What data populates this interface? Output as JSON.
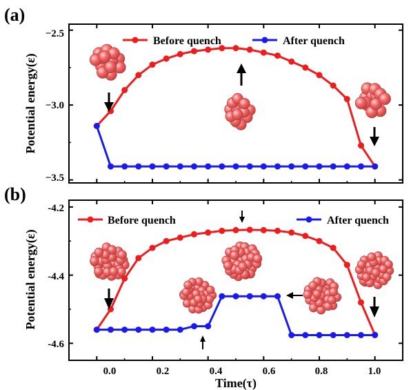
{
  "colors": {
    "before": "#ee1c1c",
    "after": "#1a1aee",
    "atom_fill": "#f06262",
    "atom_stroke": "#b63030",
    "arrow": "#000000"
  },
  "icons": [
    "cluster-icon",
    "down-arrow-icon",
    "up-arrow-icon",
    "left-arrow-icon"
  ],
  "chart_data": [
    {
      "type": "line",
      "panel_label": "(a)",
      "xlabel": "",
      "ylabel": "Potential energy(ε)",
      "xlim": [
        -0.1,
        1.1
      ],
      "ylim": [
        -3.52,
        -2.46
      ],
      "xticks": [
        0.0,
        0.2,
        0.4,
        0.6,
        0.8,
        1.0
      ],
      "xticklabels": [
        "",
        "",
        "",
        "",
        "",
        ""
      ],
      "yticks": [
        -3.5,
        -3.0,
        -2.5
      ],
      "yticklabels": [
        "−3.5",
        "−3.0",
        "−2.5"
      ],
      "legend_placement": "top",
      "series": [
        {
          "name": "Before quench",
          "color": "#ee1c1c",
          "x": [
            0.0,
            0.05,
            0.1,
            0.15,
            0.2,
            0.25,
            0.3,
            0.35,
            0.4,
            0.45,
            0.5,
            0.55,
            0.6,
            0.65,
            0.7,
            0.75,
            0.8,
            0.85,
            0.9,
            0.95,
            1.0
          ],
          "y": [
            -3.14,
            -3.04,
            -2.9,
            -2.8,
            -2.73,
            -2.69,
            -2.66,
            -2.64,
            -2.63,
            -2.62,
            -2.62,
            -2.63,
            -2.65,
            -2.67,
            -2.71,
            -2.75,
            -2.8,
            -2.87,
            -2.96,
            -3.27,
            -3.41
          ]
        },
        {
          "name": "After quench",
          "color": "#1a1aee",
          "x": [
            0.0,
            0.05,
            0.1,
            0.15,
            0.2,
            0.25,
            0.3,
            0.35,
            0.4,
            0.45,
            0.5,
            0.55,
            0.6,
            0.65,
            0.7,
            0.75,
            0.8,
            0.85,
            0.9,
            0.95,
            1.0
          ],
          "y": [
            -3.14,
            -3.41,
            -3.41,
            -3.41,
            -3.41,
            -3.41,
            -3.41,
            -3.41,
            -3.41,
            -3.41,
            -3.41,
            -3.41,
            -3.41,
            -3.41,
            -3.41,
            -3.41,
            -3.41,
            -3.41,
            -3.41,
            -3.41,
            -3.41
          ]
        }
      ]
    },
    {
      "type": "line",
      "panel_label": "(b)",
      "xlabel": "Time(τ)",
      "ylabel": "Potential energy(ε)",
      "xlim": [
        -0.1,
        1.1
      ],
      "ylim": [
        -4.65,
        -4.18
      ],
      "xticks": [
        0.0,
        0.2,
        0.4,
        0.6,
        0.8,
        1.0
      ],
      "xticklabels": [
        "0.0",
        "0.2",
        "0.4",
        "0.6",
        "0.8",
        "1.0"
      ],
      "yticks": [
        -4.6,
        -4.4,
        -4.2
      ],
      "yticklabels": [
        "-4.6",
        "-4.4",
        "-4.2"
      ],
      "legend_placement": "top",
      "series": [
        {
          "name": "Before quench",
          "color": "#ee1c1c",
          "x": [
            0.0,
            0.05,
            0.1,
            0.15,
            0.2,
            0.25,
            0.3,
            0.35,
            0.4,
            0.45,
            0.5,
            0.55,
            0.6,
            0.65,
            0.7,
            0.75,
            0.8,
            0.85,
            0.9,
            0.95,
            1.0
          ],
          "y": [
            -4.56,
            -4.5,
            -4.41,
            -4.35,
            -4.32,
            -4.3,
            -4.29,
            -4.28,
            -4.275,
            -4.27,
            -4.268,
            -4.267,
            -4.268,
            -4.27,
            -4.275,
            -4.285,
            -4.3,
            -4.32,
            -4.37,
            -4.48,
            -4.575
          ]
        },
        {
          "name": "After quench",
          "color": "#1a1aee",
          "x": [
            0.0,
            0.05,
            0.1,
            0.15,
            0.2,
            0.25,
            0.3,
            0.35,
            0.4,
            0.45,
            0.5,
            0.55,
            0.6,
            0.65,
            0.7,
            0.75,
            0.8,
            0.85,
            0.9,
            0.95,
            1.0
          ],
          "y": [
            -4.56,
            -4.56,
            -4.56,
            -4.56,
            -4.56,
            -4.56,
            -4.56,
            -4.55,
            -4.55,
            -4.462,
            -4.462,
            -4.462,
            -4.462,
            -4.462,
            -4.576,
            -4.576,
            -4.576,
            -4.576,
            -4.576,
            -4.576,
            -4.576
          ]
        }
      ]
    }
  ]
}
